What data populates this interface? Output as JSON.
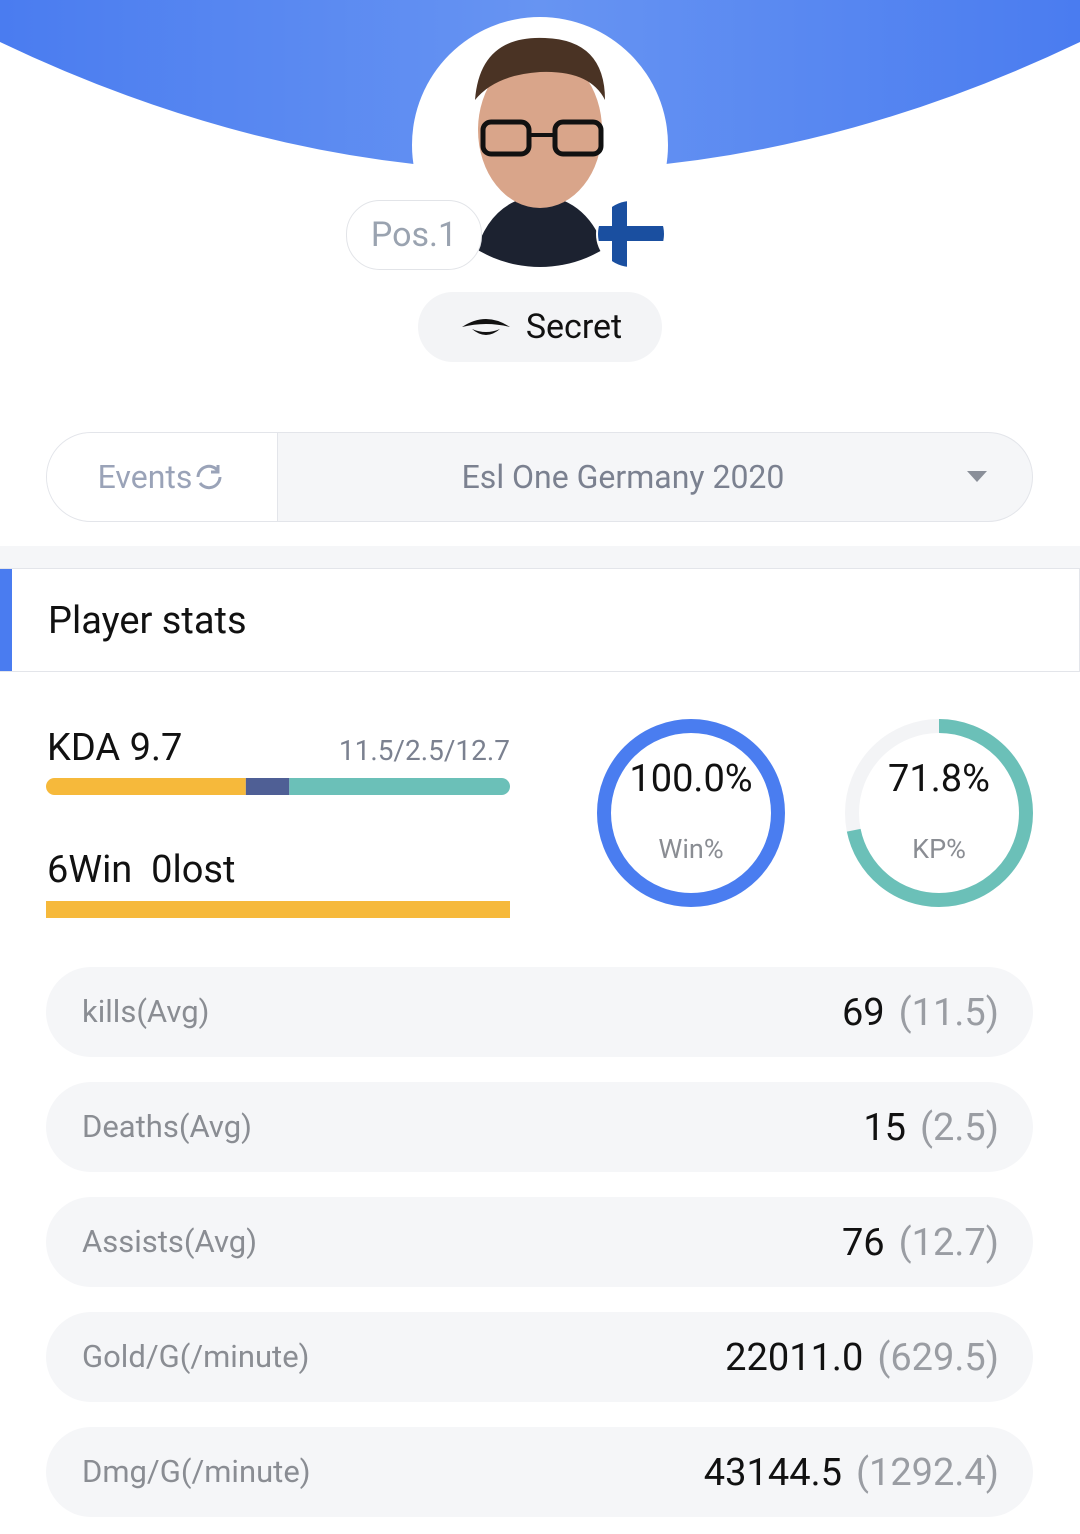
{
  "header": {
    "position": "Pos.1",
    "team": "Secret"
  },
  "filter": {
    "label": "Events",
    "event": "Esl One Germany 2020"
  },
  "section_title": "Player stats",
  "summary": {
    "kda": "KDA 9.7",
    "kda_breakdown": "11.5/2.5/12.7",
    "record": "6Win  0lost"
  },
  "rings": [
    {
      "value": "100.0%",
      "label": "Win%",
      "color": "#4a7df0"
    },
    {
      "value": "71.8%",
      "label": "KP%",
      "color": "#6bc0b8"
    }
  ],
  "rows": [
    {
      "label": "kills(Avg)",
      "total": "69",
      "avg": "(11.5)"
    },
    {
      "label": "Deaths(Avg)",
      "total": "15",
      "avg": "(2.5)"
    },
    {
      "label": "Assists(Avg)",
      "total": "76",
      "avg": "(12.7)"
    },
    {
      "label": "Gold/G(/minute)",
      "total": "22011.0",
      "avg": "(629.5)"
    },
    {
      "label": "Dmg/G(/minute)",
      "total": "43144.5",
      "avg": "(1292.4)"
    }
  ]
}
